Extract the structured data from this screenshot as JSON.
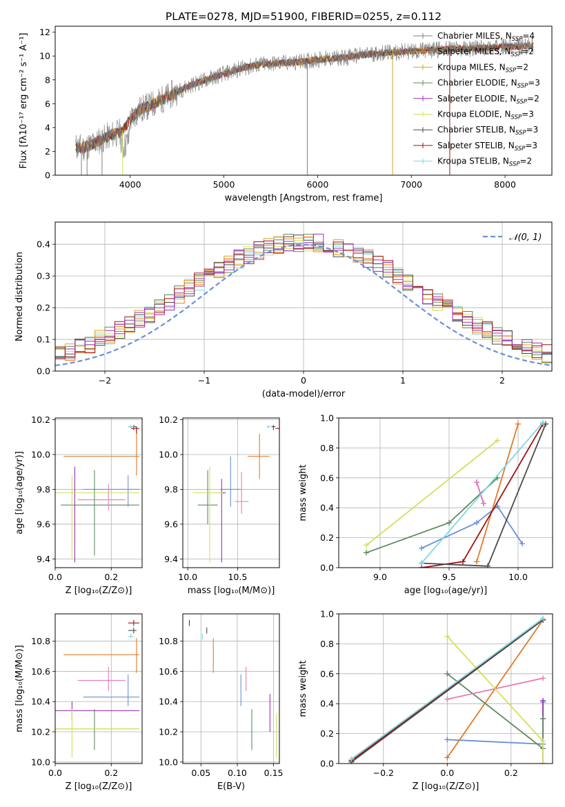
{
  "figure_title": "PLATE=0278, MJD=51900, FIBERID=0255, z=0.112",
  "colors": {
    "series": [
      "#7f7f7f",
      "#ff7f0e",
      "#d6a030",
      "#5c8a5c",
      "#9b30b0",
      "#d4e05a",
      "#4a4a4a",
      "#a01010",
      "#7ed8e0"
    ],
    "gaussian": "#6a8fd8",
    "errorbar_sets": [
      "#6a8fd8",
      "#e07a28",
      "#9b30b0",
      "#5c8a5c",
      "#e87ab8",
      "#d4e05a",
      "#a01010",
      "#4a4a4a",
      "#7ed8e0"
    ]
  },
  "chart_data": [
    {
      "id": "spectrum",
      "type": "line",
      "xlabel": "wavelength [Angstrom, rest frame]",
      "ylabel": "Flux [fλ10⁻¹⁷ erg cm⁻² s⁻¹ A⁻¹]",
      "xlim": [
        3200,
        8500
      ],
      "ylim": [
        0,
        12.5
      ],
      "xticks": [
        4000,
        5000,
        6000,
        7000,
        8000
      ],
      "yticks": [
        0,
        2,
        4,
        6,
        8,
        10,
        12
      ],
      "grid": false,
      "legend_position": "top-right",
      "continuum_x": [
        3400,
        3500,
        3600,
        3700,
        3800,
        3900,
        4000,
        4100,
        4200,
        4300,
        4400,
        4500,
        4600,
        4800,
        5000,
        5200,
        5400,
        5600,
        5800,
        6000,
        6200,
        6400,
        6600,
        6800,
        7000,
        7200,
        7400,
        7600,
        7800,
        8000,
        8200,
        8300
      ],
      "continuum_y": [
        2.4,
        2.3,
        2.6,
        3.0,
        3.4,
        3.6,
        4.6,
        5.5,
        5.8,
        6.2,
        6.6,
        7.0,
        7.4,
        8.0,
        8.5,
        9.0,
        9.3,
        9.4,
        9.5,
        9.7,
        9.8,
        10.0,
        10.2,
        10.3,
        10.4,
        10.5,
        10.6,
        10.6,
        10.7,
        10.8,
        10.8,
        10.9
      ],
      "series": [
        {
          "name": "Chabrier MILES, N_SSP=4"
        },
        {
          "name": "Salpeter MILES, N_SSP=2"
        },
        {
          "name": "Kroupa MILES, N_SSP=2"
        },
        {
          "name": "Chabrier ELODIE, N_SSP=3"
        },
        {
          "name": "Salpeter ELODIE, N_SSP=2"
        },
        {
          "name": "Kroupa ELODIE, N_SSP=3"
        },
        {
          "name": "Chabrier STELIB, N_SSP=3"
        },
        {
          "name": "Salpeter STELIB, N_SSP=3"
        },
        {
          "name": "Kroupa STELIB, N_SSP=2"
        }
      ]
    },
    {
      "id": "residuals",
      "type": "line",
      "xlabel": "(data-model)/error",
      "ylabel": "Normed distribution",
      "xlim": [
        -2.5,
        2.5
      ],
      "ylim": [
        0,
        0.47
      ],
      "xticks": [
        -2,
        -1,
        0,
        1,
        2
      ],
      "yticks": [
        0.0,
        0.1,
        0.2,
        0.3,
        0.4
      ],
      "grid": true,
      "legend_position": "top-right",
      "gaussian_label": "𝒩(0, 1)",
      "bin_width": 0.1
    },
    {
      "id": "age-vs-Z",
      "type": "scatter",
      "xlabel": "Z [log₁₀(Z/Z⊙)]",
      "ylabel": "age  [log₁₀(age/yr)]",
      "xlim": [
        0.0,
        0.31
      ],
      "ylim": [
        9.35,
        10.21
      ],
      "xticks": [
        0.0,
        0.2
      ],
      "yticks": [
        9.4,
        9.6,
        9.8,
        10.0,
        10.2
      ],
      "grid": true,
      "points": [
        {
          "x": 0.26,
          "y": 9.8,
          "xerr": [
            0.1,
            0.3
          ],
          "yerr": [
            9.7,
            9.88
          ]
        },
        {
          "x": 0.29,
          "y": 9.99,
          "xerr": [
            0.03,
            0.3
          ],
          "yerr": [
            9.88,
            10.16
          ]
        },
        {
          "x": 0.07,
          "y": 9.78,
          "xerr": [
            0.0,
            0.3
          ],
          "yerr": [
            9.38,
            9.93
          ]
        },
        {
          "x": 0.14,
          "y": 9.71,
          "xerr": [
            0.02,
            0.3
          ],
          "yerr": [
            9.42,
            9.91
          ]
        },
        {
          "x": 0.19,
          "y": 9.74,
          "xerr": [
            0.08,
            0.25
          ],
          "yerr": [
            9.68,
            9.83
          ]
        },
        {
          "x": 0.06,
          "y": 9.78,
          "xerr": [
            0.0,
            0.3
          ],
          "yerr": [
            9.4,
            9.88
          ]
        },
        {
          "x": 0.29,
          "y": 10.15,
          "xerr": [
            0.27,
            0.3
          ],
          "yerr": [
            10.12,
            10.16
          ]
        },
        {
          "x": 0.28,
          "y": 10.16,
          "xerr": [
            0.26,
            0.29
          ],
          "yerr": [
            10.14,
            10.17
          ]
        },
        {
          "x": 0.27,
          "y": 10.16,
          "xerr": [
            0.26,
            0.28
          ],
          "yerr": [
            10.15,
            10.17
          ]
        }
      ]
    },
    {
      "id": "age-vs-mass",
      "type": "scatter",
      "xlabel": "mass [log₁₀(M/M⊙)]",
      "ylabel": "",
      "xlim": [
        9.95,
        10.92
      ],
      "ylim": [
        9.35,
        10.21
      ],
      "xticks": [
        10.0,
        10.5
      ],
      "yticks": [
        9.4,
        9.6,
        9.8,
        10.0,
        10.2
      ],
      "grid": true,
      "points": [
        {
          "x": 10.43,
          "y": 9.8,
          "xerr": [
            10.33,
            10.53
          ],
          "yerr": [
            9.7,
            9.99
          ]
        },
        {
          "x": 10.72,
          "y": 9.99,
          "xerr": [
            10.6,
            10.82
          ],
          "yerr": [
            9.86,
            10.12
          ]
        },
        {
          "x": 10.34,
          "y": 9.78,
          "xerr": [
            10.3,
            10.38
          ],
          "yerr": [
            9.38,
            9.86
          ]
        },
        {
          "x": 10.2,
          "y": 9.71,
          "xerr": [
            10.1,
            10.3
          ],
          "yerr": [
            9.6,
            9.91
          ]
        },
        {
          "x": 10.54,
          "y": 9.73,
          "xerr": [
            10.47,
            10.61
          ],
          "yerr": [
            9.66,
            9.9
          ]
        },
        {
          "x": 10.22,
          "y": 9.78,
          "xerr": [
            10.05,
            10.35
          ],
          "yerr": [
            9.38,
            9.93
          ]
        },
        {
          "x": 10.92,
          "y": 10.15,
          "xerr": [
            10.88,
            10.95
          ],
          "yerr": [
            10.13,
            10.16
          ]
        },
        {
          "x": 10.86,
          "y": 10.16,
          "xerr": [
            10.84,
            10.88
          ],
          "yerr": [
            10.14,
            10.17
          ]
        },
        {
          "x": 10.81,
          "y": 10.16,
          "xerr": [
            10.79,
            10.83
          ],
          "yerr": [
            10.15,
            10.17
          ]
        }
      ]
    },
    {
      "id": "massweight-vs-age",
      "type": "line",
      "xlabel": "age  [log₁₀(age/yr)]",
      "ylabel": "mass weight",
      "xlim": [
        8.7,
        10.25
      ],
      "ylim": [
        0,
        1.0
      ],
      "xticks": [
        9.0,
        9.5,
        10.0
      ],
      "yticks": [
        0.0,
        0.2,
        0.4,
        0.6,
        0.8,
        1.0
      ],
      "grid": true,
      "series": [
        {
          "x": [
            9.3,
            9.7,
            9.85,
            10.03
          ],
          "y": [
            0.13,
            0.3,
            0.41,
            0.16
          ]
        },
        {
          "x": [
            9.7,
            10.0
          ],
          "y": [
            0.04,
            0.96
          ]
        },
        {
          "x": [
            9.7,
            9.75
          ],
          "y": [
            0.57,
            0.43
          ]
        },
        {
          "x": [
            8.9,
            9.5,
            9.85
          ],
          "y": [
            0.1,
            0.3,
            0.6
          ]
        },
        {
          "x": [
            9.7,
            9.75
          ],
          "y": [
            0.57,
            0.43
          ]
        },
        {
          "x": [
            8.9,
            9.85
          ],
          "y": [
            0.15,
            0.85
          ]
        },
        {
          "x": [
            9.3,
            9.6,
            10.18
          ],
          "y": [
            0.0,
            0.04,
            0.96
          ]
        },
        {
          "x": [
            9.3,
            9.78,
            10.2
          ],
          "y": [
            0.03,
            0.01,
            0.96
          ]
        },
        {
          "x": [
            9.3,
            10.18
          ],
          "y": [
            0.03,
            0.97
          ]
        }
      ]
    },
    {
      "id": "mass-vs-Z",
      "type": "scatter",
      "xlabel": "Z [log₁₀(Z/Z⊙)]",
      "ylabel": "mass [log₁₀(M/M⊙)]",
      "xlim": [
        0.0,
        0.31
      ],
      "ylim": [
        9.99,
        10.98
      ],
      "xticks": [
        0.0,
        0.2
      ],
      "yticks": [
        10.0,
        10.2,
        10.4,
        10.6,
        10.8
      ],
      "grid": true,
      "points": [
        {
          "x": 0.26,
          "y": 10.43,
          "xerr": [
            0.1,
            0.3
          ],
          "yerr": [
            10.37,
            10.58
          ]
        },
        {
          "x": 0.29,
          "y": 10.71,
          "xerr": [
            0.03,
            0.3
          ],
          "yerr": [
            10.59,
            10.82
          ]
        },
        {
          "x": 0.06,
          "y": 10.34,
          "xerr": [
            0.0,
            0.3
          ],
          "yerr": [
            10.28,
            10.4
          ]
        },
        {
          "x": 0.14,
          "y": 10.22,
          "xerr": [
            0.0,
            0.3
          ],
          "yerr": [
            10.08,
            10.35
          ]
        },
        {
          "x": 0.19,
          "y": 10.54,
          "xerr": [
            0.08,
            0.25
          ],
          "yerr": [
            10.47,
            10.63
          ]
        },
        {
          "x": 0.06,
          "y": 10.22,
          "xerr": [
            0.0,
            0.3
          ],
          "yerr": [
            10.03,
            10.35
          ]
        },
        {
          "x": 0.28,
          "y": 10.92,
          "xerr": [
            0.26,
            0.3
          ],
          "yerr": [
            10.9,
            10.94
          ]
        },
        {
          "x": 0.28,
          "y": 10.87,
          "xerr": [
            0.26,
            0.29
          ],
          "yerr": [
            10.85,
            10.89
          ]
        },
        {
          "x": 0.27,
          "y": 10.83,
          "xerr": [
            0.26,
            0.28
          ],
          "yerr": [
            10.82,
            10.85
          ]
        }
      ]
    },
    {
      "id": "mass-vs-ebv",
      "type": "scatter",
      "xlabel": "E(B-V)",
      "ylabel": "",
      "xlim": [
        0.025,
        0.158
      ],
      "ylim": [
        9.99,
        10.98
      ],
      "xticks": [
        0.05,
        0.1,
        0.15
      ],
      "yticks": [
        10.0,
        10.2,
        10.4,
        10.6,
        10.8
      ],
      "grid": true,
      "points": [
        {
          "x": 0.105,
          "y": 10.43,
          "xerr": [
            0.105,
            0.105
          ],
          "yerr": [
            10.37,
            10.58
          ]
        },
        {
          "x": 0.067,
          "y": 10.71,
          "xerr": [
            0.067,
            0.067
          ],
          "yerr": [
            10.59,
            10.82
          ]
        },
        {
          "x": 0.145,
          "y": 10.34,
          "xerr": [
            0.145,
            0.145
          ],
          "yerr": [
            10.2,
            10.45
          ]
        },
        {
          "x": 0.12,
          "y": 10.22,
          "xerr": [
            0.12,
            0.12
          ],
          "yerr": [
            10.08,
            10.35
          ]
        },
        {
          "x": 0.112,
          "y": 10.54,
          "xerr": [
            0.112,
            0.112
          ],
          "yerr": [
            10.47,
            10.63
          ]
        },
        {
          "x": 0.154,
          "y": 10.22,
          "xerr": [
            0.154,
            0.154
          ],
          "yerr": [
            10.03,
            10.32
          ]
        },
        {
          "x": 0.034,
          "y": 10.92,
          "xerr": [
            0.034,
            0.034
          ],
          "yerr": [
            10.9,
            10.94
          ]
        },
        {
          "x": 0.058,
          "y": 10.87,
          "xerr": [
            0.058,
            0.058
          ],
          "yerr": [
            10.85,
            10.89
          ]
        },
        {
          "x": 0.052,
          "y": 10.83,
          "xerr": [
            0.052,
            0.052
          ],
          "yerr": [
            10.81,
            10.85
          ]
        }
      ]
    },
    {
      "id": "massweight-vs-Z",
      "type": "line",
      "xlabel": "Z [log₁₀(Z/Z⊙)]",
      "ylabel": "mass weight",
      "xlim": [
        -0.34,
        0.33
      ],
      "ylim": [
        0,
        1.0
      ],
      "xticks": [
        -0.2,
        0.0,
        0.2
      ],
      "yticks": [
        0.0,
        0.2,
        0.4,
        0.6,
        0.8,
        1.0
      ],
      "grid": true,
      "series": [
        {
          "x": [
            0.0,
            0.3,
            0.3,
            0.3
          ],
          "y": [
            0.16,
            0.13,
            0.41,
            0.3
          ]
        },
        {
          "x": [
            0.0,
            0.3
          ],
          "y": [
            0.04,
            0.96
          ]
        },
        {
          "x": [
            0.3,
            0.3
          ],
          "y": [
            0.0,
            0.42
          ]
        },
        {
          "x": [
            0.0,
            0.3,
            0.3
          ],
          "y": [
            0.6,
            0.1,
            0.3
          ]
        },
        {
          "x": [
            0.0,
            0.3
          ],
          "y": [
            0.43,
            0.57
          ]
        },
        {
          "x": [
            0.0,
            0.3,
            0.3
          ],
          "y": [
            0.85,
            0.15,
            0.0
          ]
        },
        {
          "x": [
            -0.3,
            0.3
          ],
          "y": [
            0.02,
            0.96
          ]
        },
        {
          "x": [
            -0.3,
            0.3
          ],
          "y": [
            0.01,
            0.96
          ]
        },
        {
          "x": [
            -0.3,
            0.3
          ],
          "y": [
            0.03,
            0.97
          ]
        }
      ]
    }
  ]
}
